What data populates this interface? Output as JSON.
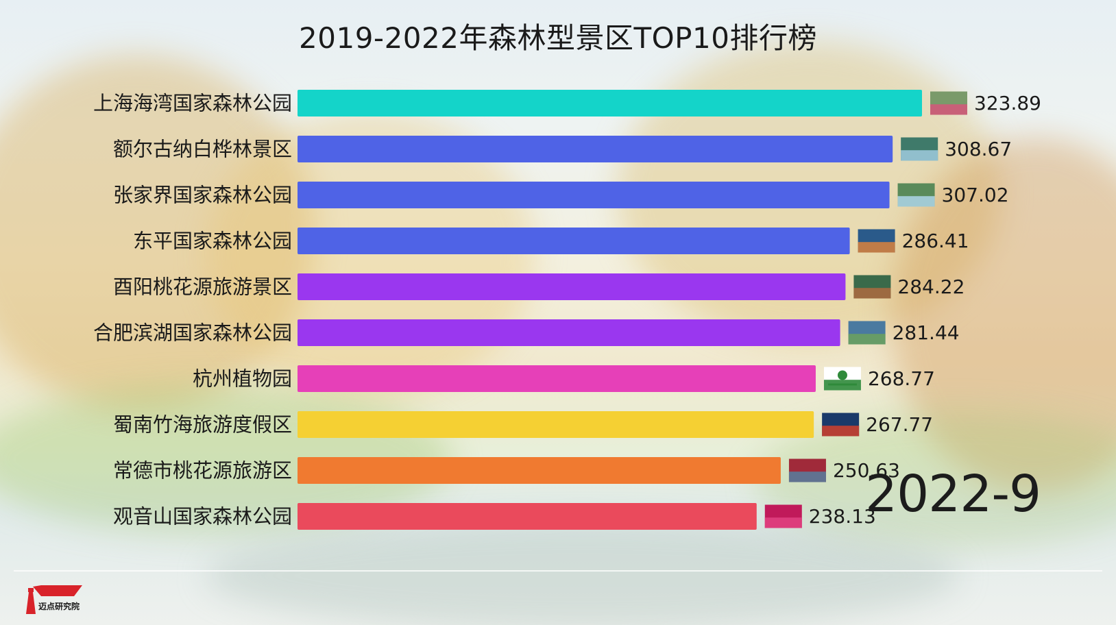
{
  "chart_data": {
    "type": "bar",
    "orientation": "horizontal",
    "title": "2019-2022年森林型景区TOP10排行榜",
    "period": "2022-9",
    "xlim": [
      0,
      340
    ],
    "categories": [
      "上海海湾国家森林公园",
      "额尔古纳白桦林景区",
      "张家界国家森林公园",
      "东平国家森林公园",
      "酉阳桃花源旅游景区",
      "合肥滨湖国家森林公园",
      "杭州植物园",
      "蜀南竹海旅游度假区",
      "常德市桃花源旅游区",
      "观音山国家森林公园"
    ],
    "values": [
      323.89,
      308.67,
      307.02,
      286.41,
      284.22,
      281.44,
      268.77,
      267.77,
      250.63,
      238.13
    ],
    "value_labels": [
      "323.89",
      "308.67",
      "307.02",
      "286.41",
      "284.22",
      "281.44",
      "268.77",
      "267.77",
      "250.63",
      "238.13"
    ],
    "colors": [
      "#14d4c9",
      "#4f63e6",
      "#4f63e6",
      "#4f63e6",
      "#9a37ef",
      "#9a37ef",
      "#e640b8",
      "#f5d033",
      "#f07a30",
      "#ea4a5c"
    ],
    "thumbnail_icons": [
      "scenic-photo-icon",
      "scenic-photo-icon",
      "scenic-photo-icon",
      "scenic-photo-icon",
      "scenic-photo-icon",
      "scenic-photo-icon",
      "garden-logo-icon",
      "scenic-photo-icon",
      "scenic-photo-icon",
      "scenic-photo-icon"
    ],
    "grid": false,
    "legend": "none"
  },
  "brand": {
    "name": "迈点研究院",
    "icon": "lighthouse-logo-icon"
  }
}
